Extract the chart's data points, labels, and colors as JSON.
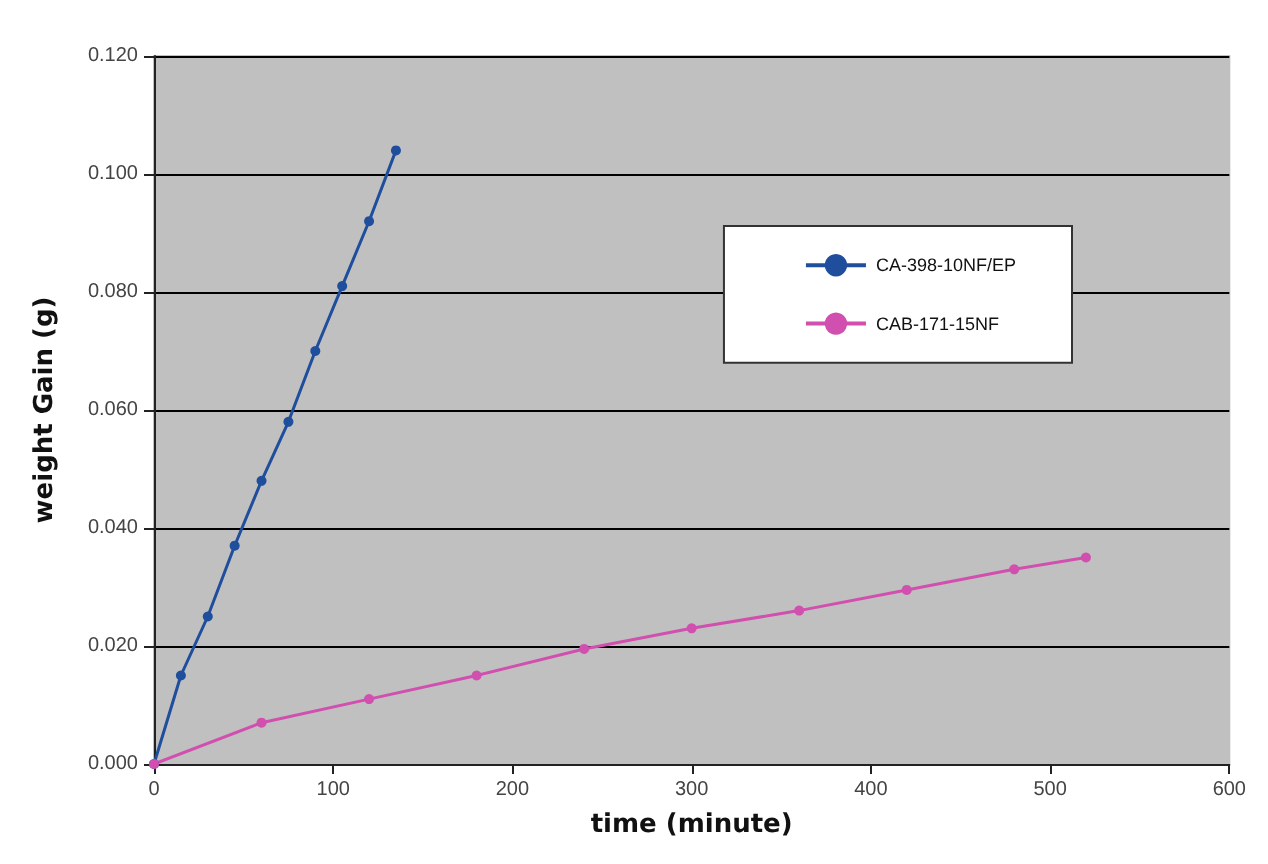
{
  "chart_data": {
    "type": "line",
    "xlabel": "time (minute)",
    "ylabel": "weight Gain (g)",
    "xlim": [
      0,
      600
    ],
    "xticks": [
      0,
      100,
      200,
      300,
      400,
      500,
      600
    ],
    "ylim": [
      0,
      0.12
    ],
    "yticks": [
      {
        "value": 0,
        "label": "0.000"
      },
      {
        "value": 0.02,
        "label": "0.020"
      },
      {
        "value": 0.04,
        "label": "0.040"
      },
      {
        "value": 0.06,
        "label": "0.060"
      },
      {
        "value": 0.08,
        "label": "0.080"
      },
      {
        "value": 0.1,
        "label": "0.100"
      },
      {
        "value": 0.12,
        "label": "0.120"
      }
    ],
    "grid": "y",
    "legend": "top right",
    "marker": "circle",
    "line_style": "solid",
    "series": [
      {
        "name": "CA-398-10NF/EP",
        "color": "#1f4e9c",
        "x": [
          0,
          15,
          30,
          45,
          60,
          75,
          90,
          105,
          120,
          135
        ],
        "values": [
          0,
          0.015,
          0.025,
          0.037,
          0.048,
          0.058,
          0.07,
          0.081,
          0.092,
          0.104
        ]
      },
      {
        "name": "CAB-171-15NF",
        "color": "#d14fae",
        "x": [
          0,
          60,
          120,
          180,
          240,
          300,
          360,
          420,
          480,
          520
        ],
        "values": [
          0,
          0.007,
          0.011,
          0.015,
          0.0195,
          0.023,
          0.026,
          0.0295,
          0.033,
          0.035
        ]
      }
    ]
  }
}
